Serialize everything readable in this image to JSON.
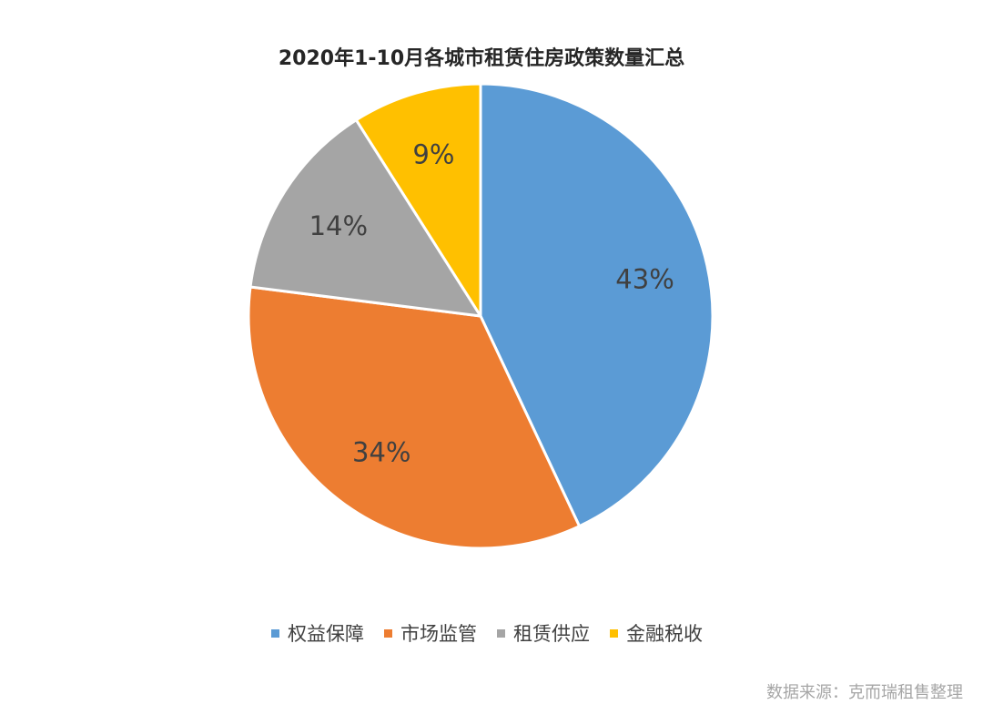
{
  "chart_data": {
    "type": "pie",
    "title": "2020年1-10月各城市租赁住房政策数量汇总",
    "categories": [
      "权益保障",
      "市场监管",
      "租赁供应",
      "金融税收"
    ],
    "values": [
      43,
      34,
      14,
      9
    ],
    "labels": [
      "43%",
      "34%",
      "14%",
      "9%"
    ],
    "colors": [
      "#5b9bd5",
      "#ed7d31",
      "#a5a5a5",
      "#ffc000"
    ],
    "legend_position": "bottom"
  },
  "source": "数据来源：克而瑞租售整理"
}
